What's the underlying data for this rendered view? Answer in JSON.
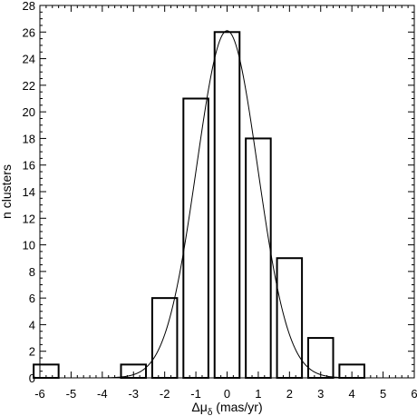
{
  "chart_data": {
    "type": "bar",
    "xlabel_main": "Δμ",
    "xlabel_sub": "δ",
    "xlabel_unit": " (mas/yr)",
    "ylabel": "n clusters",
    "xlim": [
      -6,
      6
    ],
    "ylim": [
      0,
      28
    ],
    "xticks": [
      -6,
      -5,
      -4,
      -3,
      -2,
      -1,
      0,
      1,
      2,
      3,
      4,
      5,
      6
    ],
    "yticks": [
      0,
      2,
      4,
      6,
      8,
      10,
      12,
      14,
      16,
      18,
      20,
      22,
      24,
      26,
      28
    ],
    "bin_width": 0.8,
    "bins": [
      {
        "center": -5.8,
        "value": 1
      },
      {
        "center": -3.0,
        "value": 1
      },
      {
        "center": -2.0,
        "value": 6
      },
      {
        "center": -1.0,
        "value": 21
      },
      {
        "center": 0.0,
        "value": 26
      },
      {
        "center": 1.0,
        "value": 18
      },
      {
        "center": 2.0,
        "value": 9
      },
      {
        "center": 3.0,
        "value": 3
      },
      {
        "center": 4.0,
        "value": 1
      }
    ],
    "fit": {
      "type": "gaussian",
      "amplitude": 26.1,
      "mean": 0.0,
      "sigma": 0.98,
      "range": [
        -4.0,
        4.0
      ]
    },
    "grid": false,
    "legend": "none"
  }
}
